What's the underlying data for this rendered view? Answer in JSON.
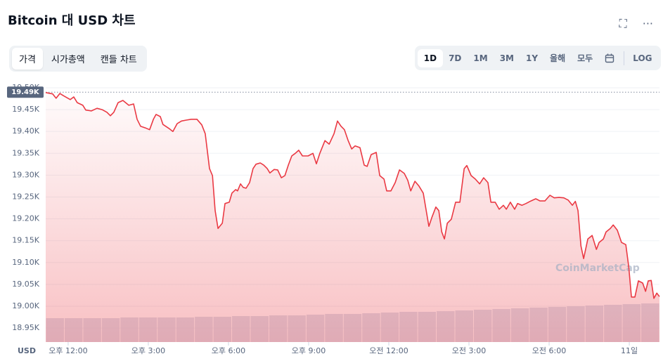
{
  "ui": {
    "title": "Bitcoin 대 USD 차트",
    "tabs": [
      "가격",
      "시가총액",
      "캔들 차트"
    ],
    "ranges": [
      "1D",
      "7D",
      "1M",
      "3M",
      "1Y",
      "올해",
      "모두"
    ],
    "log": "LOG",
    "watermark": "CoinMarketCap"
  },
  "chart_data": {
    "type": "line",
    "y_label": "USD",
    "color": "#ea3943",
    "grid": true,
    "x": [
      11.16,
      11.42,
      11.55,
      11.69,
      11.82,
      12.08,
      12.21,
      12.34,
      12.55,
      12.66,
      12.87,
      13.08,
      13.27,
      13.45,
      13.58,
      13.71,
      13.87,
      14.05,
      14.27,
      14.45,
      14.58,
      14.71,
      14.9,
      15.05,
      15.19,
      15.29,
      15.45,
      15.55,
      15.77,
      15.92,
      16.08,
      16.24,
      16.42,
      16.61,
      16.82,
      17.0,
      17.13,
      17.29,
      17.4,
      17.5,
      17.61,
      17.77,
      17.87,
      18.03,
      18.13,
      18.27,
      18.34,
      18.45,
      18.55,
      18.66,
      18.79,
      18.92,
      19.03,
      19.19,
      19.32,
      19.45,
      19.55,
      19.71,
      19.84,
      19.98,
      20.11,
      20.24,
      20.37,
      20.5,
      20.63,
      20.77,
      20.98,
      21.16,
      21.29,
      21.42,
      21.61,
      21.77,
      21.95,
      22.08,
      22.21,
      22.34,
      22.48,
      22.61,
      22.74,
      22.92,
      23.08,
      23.19,
      23.34,
      23.53,
      23.66,
      23.82,
      23.92,
      24.08,
      24.24,
      24.4,
      24.58,
      24.71,
      24.82,
      24.98,
      25.13,
      25.29,
      25.4,
      25.5,
      25.61,
      25.76,
      25.87,
      25.98,
      26.08,
      26.19,
      26.34,
      26.5,
      26.66,
      26.82,
      26.92,
      27.08,
      27.24,
      27.4,
      27.55,
      27.71,
      27.82,
      27.98,
      28.13,
      28.29,
      28.4,
      28.55,
      28.71,
      28.82,
      28.98,
      29.13,
      29.32,
      29.5,
      29.66,
      29.84,
      30.03,
      30.19,
      30.37,
      30.55,
      30.71,
      30.87,
      30.98,
      31.08,
      31.19,
      31.29,
      31.45,
      31.61,
      31.77,
      31.87,
      32.03,
      32.13,
      32.29,
      32.4,
      32.55,
      32.71,
      32.87,
      32.98,
      33.08,
      33.21,
      33.34,
      33.5,
      33.61,
      33.71,
      33.82,
      33.92,
      34.03,
      34.13
    ],
    "series": [
      {
        "name": "BTC",
        "color": "#ea3943",
        "values": [
          19489,
          19486,
          19476,
          19487,
          19482,
          19473,
          19479,
          19466,
          19460,
          19449,
          19447,
          19453,
          19450,
          19444,
          19436,
          19444,
          19466,
          19471,
          19460,
          19463,
          19428,
          19412,
          19408,
          19404,
          19428,
          19439,
          19434,
          19416,
          19407,
          19400,
          19418,
          19424,
          19426,
          19428,
          19428,
          19415,
          19395,
          19315,
          19299,
          19219,
          19178,
          19190,
          19235,
          19238,
          19259,
          19267,
          19264,
          19280,
          19272,
          19270,
          19283,
          19315,
          19325,
          19328,
          19323,
          19315,
          19305,
          19313,
          19312,
          19294,
          19299,
          19323,
          19344,
          19350,
          19357,
          19344,
          19344,
          19350,
          19326,
          19350,
          19379,
          19371,
          19395,
          19424,
          19412,
          19404,
          19379,
          19360,
          19367,
          19363,
          19323,
          19320,
          19347,
          19352,
          19299,
          19291,
          19264,
          19264,
          19283,
          19312,
          19304,
          19288,
          19264,
          19286,
          19275,
          19259,
          19219,
          19183,
          19203,
          19227,
          19219,
          19170,
          19154,
          19190,
          19199,
          19238,
          19238,
          19315,
          19322,
          19299,
          19291,
          19280,
          19294,
          19283,
          19238,
          19238,
          19222,
          19231,
          19222,
          19238,
          19222,
          19235,
          19231,
          19235,
          19241,
          19246,
          19241,
          19241,
          19254,
          19248,
          19249,
          19248,
          19243,
          19231,
          19240,
          19219,
          19138,
          19109,
          19154,
          19162,
          19130,
          19146,
          19154,
          19170,
          19178,
          19186,
          19174,
          19146,
          19141,
          19090,
          19021,
          19021,
          19058,
          19053,
          19034,
          19058,
          19059,
          19018,
          19030,
          19022
        ]
      }
    ],
    "volume": {
      "color": "#cfd6e4",
      "lim": [
        0,
        100
      ],
      "values": [
        34,
        34,
        34,
        34,
        35,
        35,
        35,
        35,
        36,
        36,
        37,
        37,
        38,
        38,
        39,
        40,
        40,
        41,
        42,
        43,
        43,
        44,
        45,
        46,
        47,
        48,
        49,
        50,
        51,
        52,
        53,
        54,
        55
      ]
    },
    "reference": {
      "value": 19490,
      "label": "19.49K"
    },
    "xlim": [
      11.16,
      34.13
    ],
    "xticks": [
      {
        "value": 12,
        "label": "오후 12:00"
      },
      {
        "value": 15,
        "label": "오후 3:00"
      },
      {
        "value": 18,
        "label": "오후 6:00"
      },
      {
        "value": 21,
        "label": "오후 9:00"
      },
      {
        "value": 24,
        "label": "오전 12:00"
      },
      {
        "value": 27,
        "label": "오전 3:00"
      },
      {
        "value": 30,
        "label": "오전 6:00"
      },
      {
        "value": 33,
        "label": "11일"
      }
    ],
    "ylim": [
      18918,
      19508
    ],
    "yticks": [
      {
        "value": 19500,
        "label": "19.50K"
      },
      {
        "value": 19450,
        "label": "19.45K"
      },
      {
        "value": 19400,
        "label": "19.40K"
      },
      {
        "value": 19350,
        "label": "19.35K"
      },
      {
        "value": 19300,
        "label": "19.30K"
      },
      {
        "value": 19250,
        "label": "19.25K"
      },
      {
        "value": 19200,
        "label": "19.20K"
      },
      {
        "value": 19150,
        "label": "19.15K"
      },
      {
        "value": 19100,
        "label": "19.10K"
      },
      {
        "value": 19050,
        "label": "19.05K"
      },
      {
        "value": 19000,
        "label": "19.00K"
      },
      {
        "value": 18950,
        "label": "18.95K"
      }
    ]
  }
}
